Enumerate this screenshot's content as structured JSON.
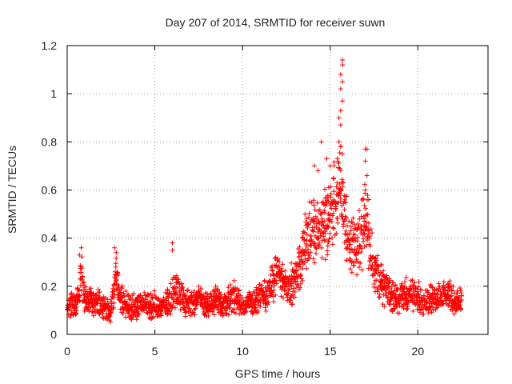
{
  "chart_data": {
    "type": "scatter",
    "title": "Day 207 of 2014, SRMTID for receiver suwn",
    "xlabel": "GPS time / hours",
    "ylabel": "SRMTID / TECUs",
    "xlim": [
      0,
      24
    ],
    "ylim": [
      0,
      1.2
    ],
    "xticks": [
      0,
      5,
      10,
      15,
      20
    ],
    "yticks": [
      0,
      0.2,
      0.4,
      0.6,
      0.8,
      1,
      1.2
    ],
    "xtick_labels": [
      "0",
      "5",
      "10",
      "15",
      "20"
    ],
    "ytick_labels": [
      "0",
      "0.2",
      "0.4",
      "0.6",
      "0.8",
      "1",
      "1.2"
    ],
    "grid": true,
    "marker": "+",
    "series": [
      {
        "name": "SRMTID",
        "color": "#ff0000",
        "profile": {
          "x": [
            0,
            0.5,
            0.8,
            1.0,
            1.5,
            2.0,
            2.5,
            2.8,
            3.0,
            3.5,
            4.0,
            5.0,
            5.5,
            5.9,
            6.2,
            6.7,
            7.0,
            7.5,
            8.0,
            8.5,
            9.0,
            9.5,
            10.0,
            10.5,
            11.0,
            11.5,
            12.0,
            12.5,
            13.0,
            13.5,
            14.0,
            14.5,
            15.0,
            15.3,
            15.6,
            16.0,
            16.5,
            17.0,
            17.5,
            18.0,
            18.5,
            19.0,
            19.5,
            20.0,
            20.5,
            21.0,
            21.5,
            22.0,
            22.5
          ],
          "y": [
            0.13,
            0.12,
            0.26,
            0.15,
            0.13,
            0.12,
            0.1,
            0.26,
            0.15,
            0.11,
            0.12,
            0.12,
            0.11,
            0.15,
            0.19,
            0.14,
            0.13,
            0.15,
            0.12,
            0.14,
            0.13,
            0.16,
            0.12,
            0.13,
            0.15,
            0.18,
            0.26,
            0.2,
            0.22,
            0.35,
            0.45,
            0.42,
            0.5,
            0.55,
            0.6,
            0.4,
            0.35,
            0.48,
            0.28,
            0.2,
            0.16,
            0.15,
            0.17,
            0.15,
            0.14,
            0.15,
            0.16,
            0.15,
            0.14
          ]
        },
        "sampling_interval_hours": 0.0167,
        "notable_points": [
          {
            "x": 15.7,
            "y": 1.14
          },
          {
            "x": 15.7,
            "y": 1.12
          },
          {
            "x": 15.6,
            "y": 1.08
          },
          {
            "x": 15.7,
            "y": 1.05
          },
          {
            "x": 15.6,
            "y": 1.02
          },
          {
            "x": 15.7,
            "y": 0.97
          },
          {
            "x": 15.6,
            "y": 0.93
          },
          {
            "x": 15.5,
            "y": 0.9
          },
          {
            "x": 15.6,
            "y": 0.87
          },
          {
            "x": 15.5,
            "y": 0.8
          },
          {
            "x": 15.6,
            "y": 0.78
          },
          {
            "x": 15.7,
            "y": 0.75
          },
          {
            "x": 14.5,
            "y": 0.8
          },
          {
            "x": 14.8,
            "y": 0.73
          },
          {
            "x": 15.0,
            "y": 0.7
          },
          {
            "x": 14.1,
            "y": 0.7
          },
          {
            "x": 14.3,
            "y": 0.68
          },
          {
            "x": 15.2,
            "y": 0.65
          },
          {
            "x": 17.0,
            "y": 0.77
          },
          {
            "x": 17.1,
            "y": 0.77
          },
          {
            "x": 17.0,
            "y": 0.72
          },
          {
            "x": 17.1,
            "y": 0.66
          },
          {
            "x": 17.0,
            "y": 0.6
          },
          {
            "x": 17.2,
            "y": 0.56
          },
          {
            "x": 6.0,
            "y": 0.38
          },
          {
            "x": 6.0,
            "y": 0.35
          },
          {
            "x": 0.8,
            "y": 0.36
          },
          {
            "x": 0.7,
            "y": 0.33
          },
          {
            "x": 2.7,
            "y": 0.36
          },
          {
            "x": 2.8,
            "y": 0.34
          }
        ]
      }
    ]
  }
}
